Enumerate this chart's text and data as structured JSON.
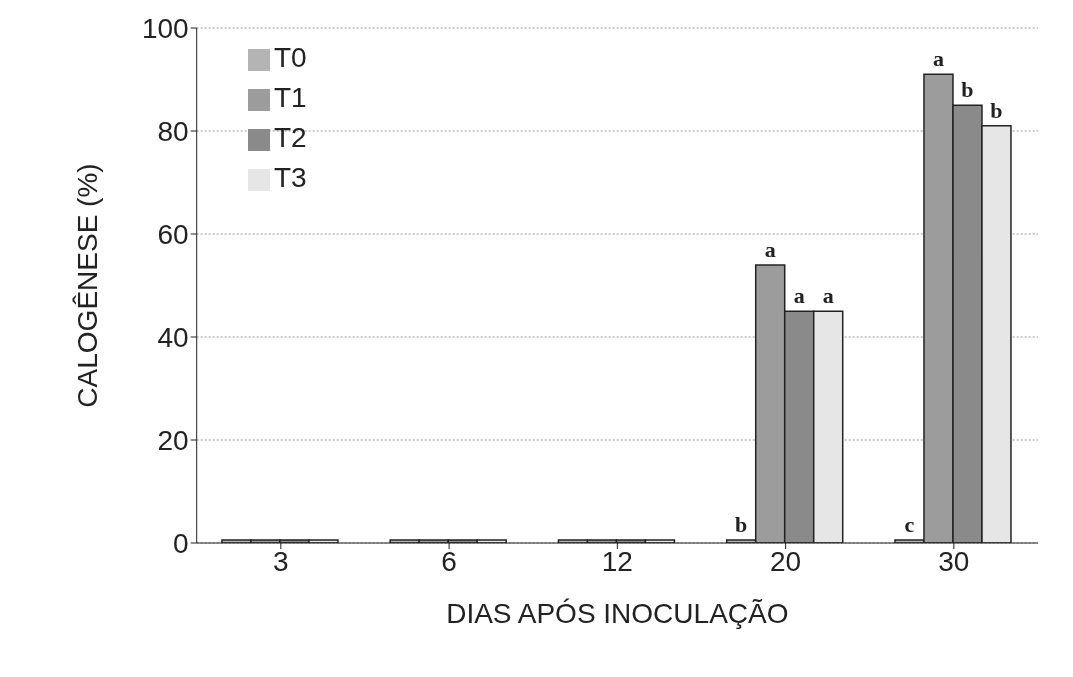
{
  "chart_data": {
    "type": "bar",
    "xlabel": "DIAS APÓS INOCULAÇÃO",
    "ylabel": "CALOGÊNESE (%)",
    "categories": [
      "3",
      "6",
      "12",
      "20",
      "30"
    ],
    "series": [
      {
        "name": "T0",
        "color": "#b4b4b4",
        "values": [
          0,
          0,
          0,
          0,
          0
        ],
        "value_labels": [
          null,
          null,
          null,
          "b",
          "c"
        ]
      },
      {
        "name": "T1",
        "color": "#9c9c9c",
        "values": [
          0,
          0,
          0,
          54,
          91
        ],
        "value_labels": [
          null,
          null,
          null,
          "a",
          "a"
        ]
      },
      {
        "name": "T2",
        "color": "#8a8a8a",
        "values": [
          0,
          0,
          0,
          45,
          85
        ],
        "value_labels": [
          null,
          null,
          null,
          "a",
          "b"
        ]
      },
      {
        "name": "T3",
        "color": "#e6e6e6",
        "values": [
          0,
          0,
          0,
          45,
          81
        ],
        "value_labels": [
          null,
          null,
          null,
          "a",
          "b"
        ]
      }
    ],
    "ylim": [
      0,
      100
    ],
    "yticks": [
      0,
      20,
      40,
      60,
      80,
      100
    ],
    "grid": "y",
    "legend": "top left"
  }
}
